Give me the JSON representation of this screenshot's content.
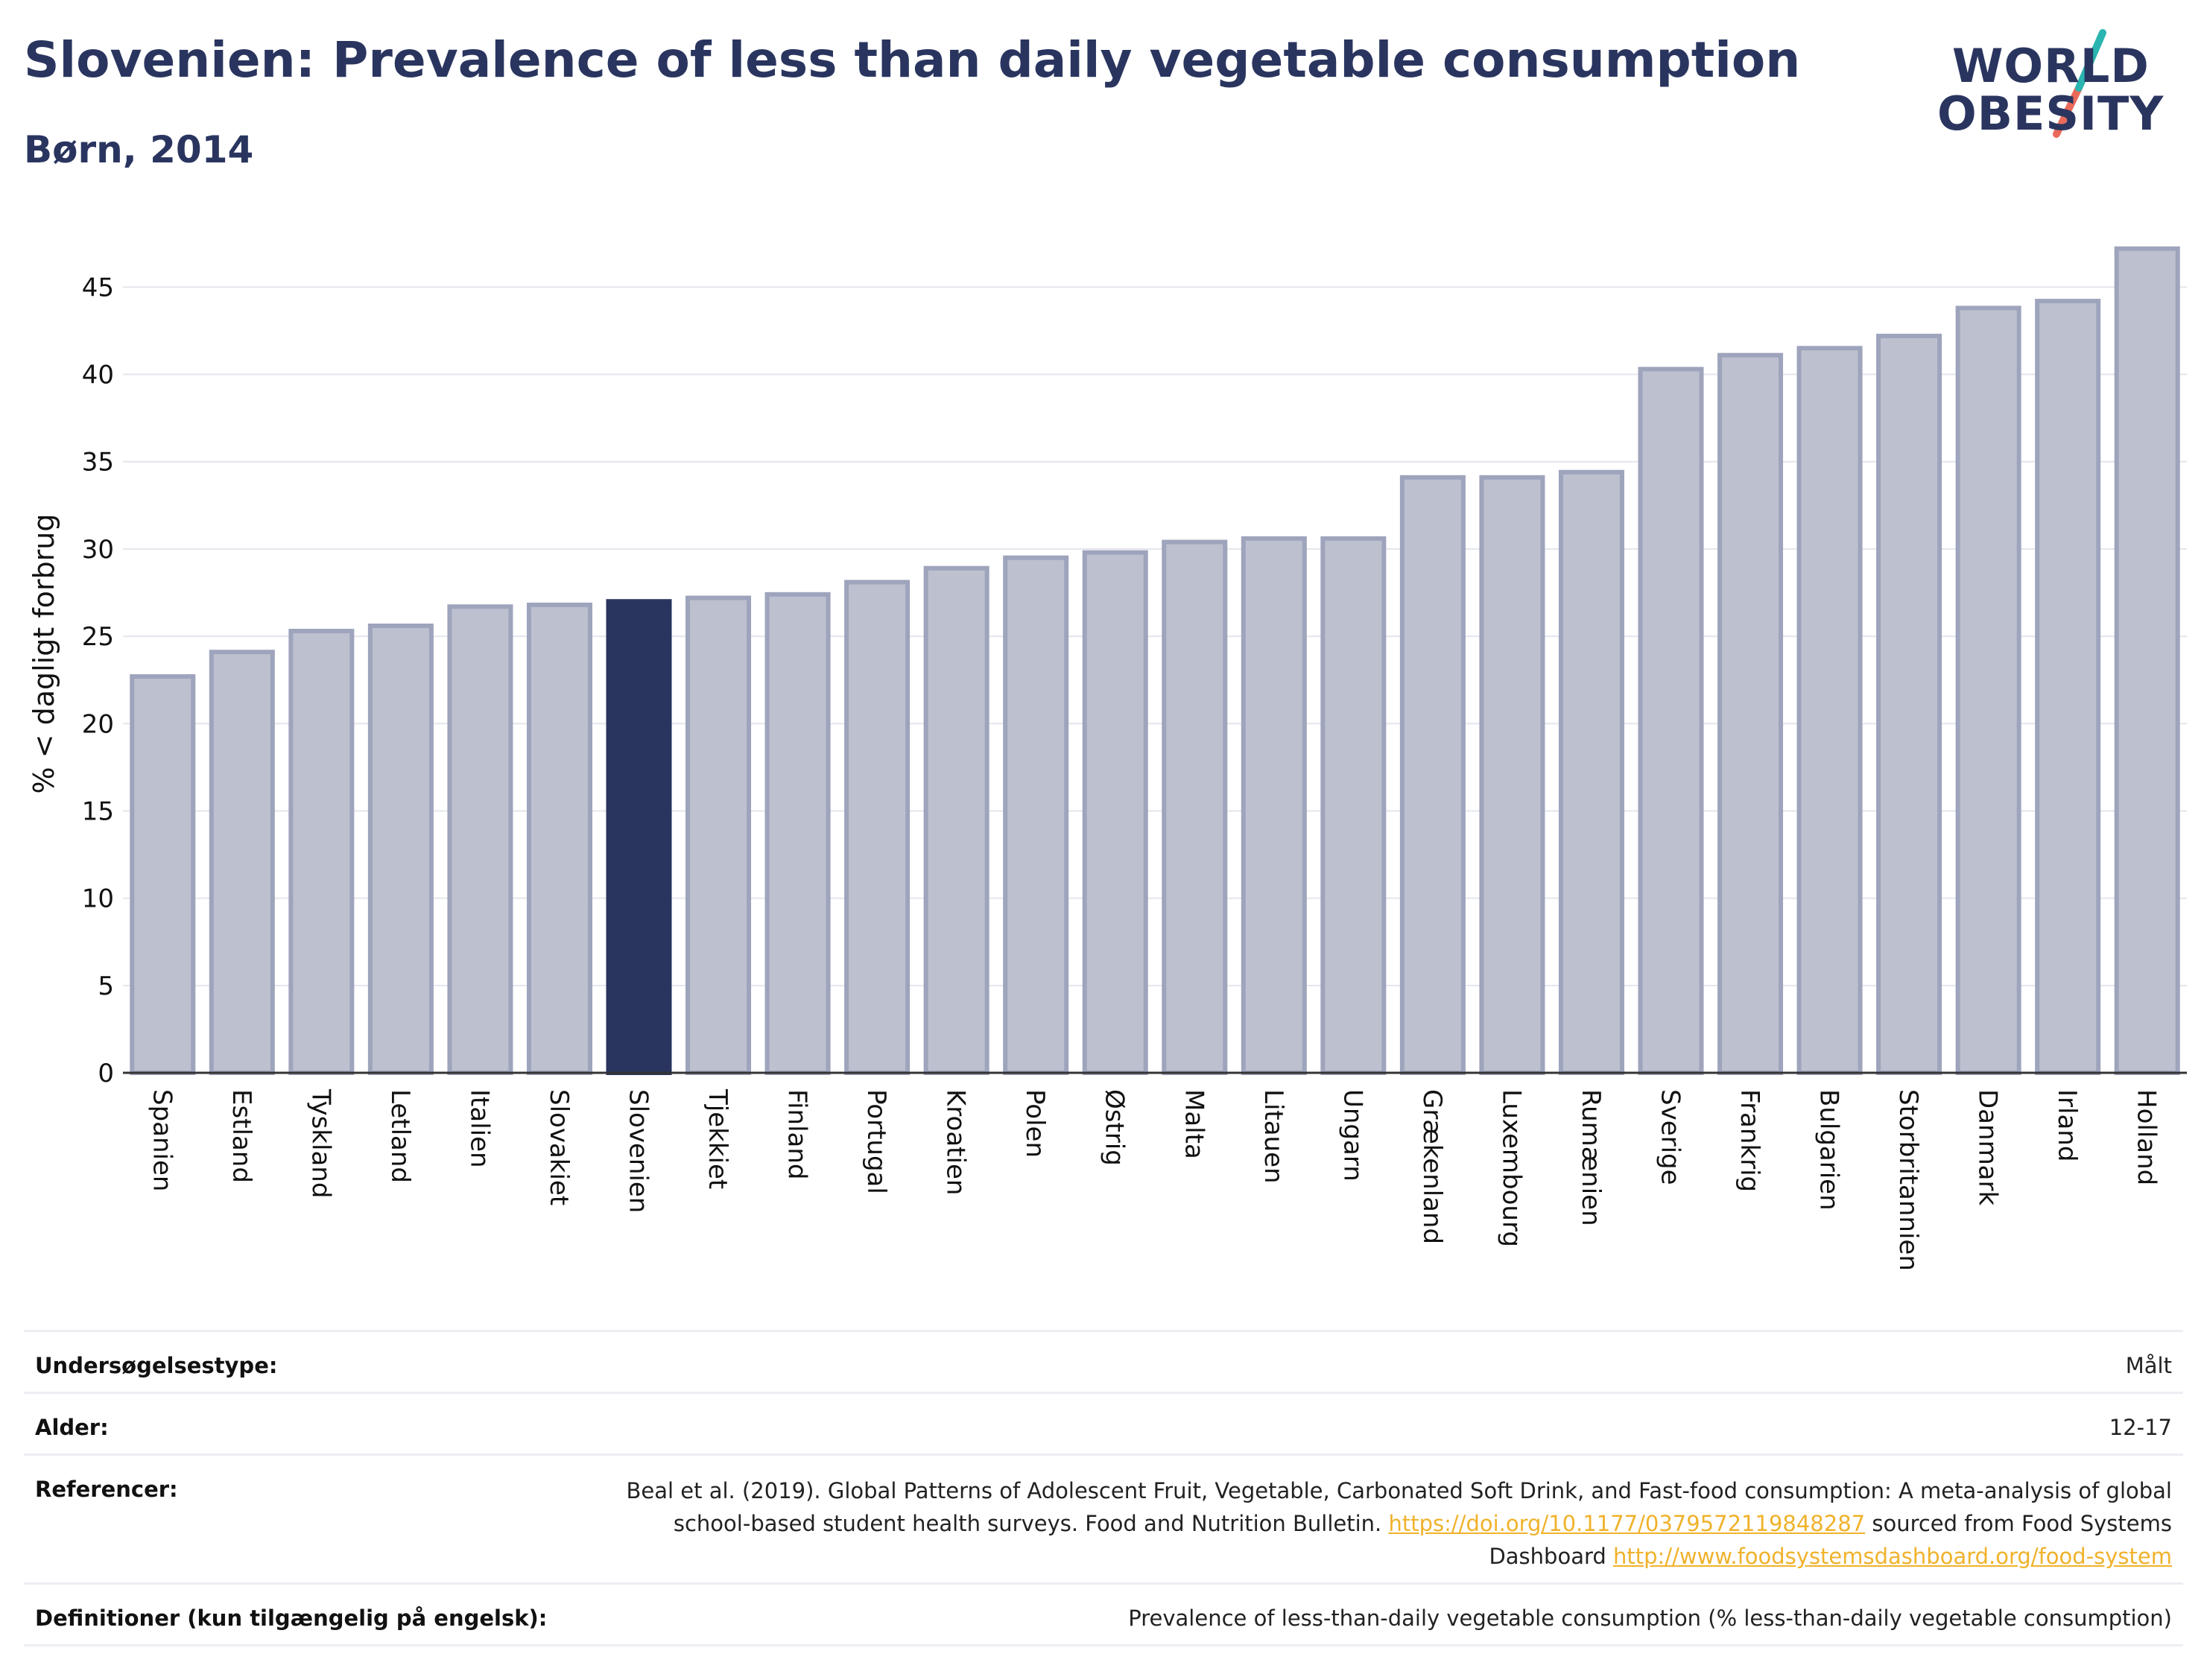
{
  "header": {
    "title": "Slovenien: Prevalence of less than daily vegetable consumption",
    "subtitle": "Børn, 2014"
  },
  "logo": {
    "line1": "WORLD",
    "line2": "OBESITY"
  },
  "colors": {
    "highlight_bar": "#2a355f",
    "bar_fill": "#bcc0cf",
    "bar_stroke": "#9ea4bc",
    "title": "#2a355f",
    "link": "#f0b22b",
    "logo_slash_teal": "#2bb5b0",
    "logo_slash_red": "#e96a5a"
  },
  "chart_data": {
    "type": "bar",
    "ylabel": "% < dagligt forbrug",
    "ylim": [
      0,
      48
    ],
    "yticks": [
      0,
      5,
      10,
      15,
      20,
      25,
      30,
      35,
      40,
      45
    ],
    "grid": true,
    "highlight": "Slovenien",
    "categories": [
      "Spanien",
      "Estland",
      "Tyskland",
      "Letland",
      "Italien",
      "Slovakiet",
      "Slovenien",
      "Tjekkiet",
      "Finland",
      "Portugal",
      "Kroatien",
      "Polen",
      "Østrig",
      "Malta",
      "Litauen",
      "Ungarn",
      "Grækenland",
      "Luxembourg",
      "Rumænien",
      "Sverige",
      "Frankrig",
      "Bulgarien",
      "Storbritannien",
      "Danmark",
      "Irland",
      "Holland"
    ],
    "values": [
      22.7,
      24.1,
      25.3,
      25.6,
      26.7,
      26.8,
      27.0,
      27.2,
      27.4,
      28.1,
      28.9,
      29.5,
      29.8,
      30.4,
      30.6,
      30.6,
      34.1,
      34.1,
      34.4,
      40.3,
      41.1,
      41.5,
      42.2,
      43.8,
      44.2,
      47.2
    ]
  },
  "info": {
    "survey_type": {
      "label": "Undersøgelsestype:",
      "value": "Målt"
    },
    "age": {
      "label": "Alder:",
      "value": "12-17"
    },
    "references": {
      "label": "Referencer:",
      "text1": "Beal et al. (2019). Global Patterns of Adolescent Fruit, Vegetable, Carbonated Soft Drink, and Fast-food consumption: A meta-analysis of global school-based student health surveys. Food and Nutrition Bulletin. ",
      "link1": "https://doi.org/10.1177/0379572119848287",
      "text2": " sourced from Food Systems Dashboard ",
      "link2": "http://www.foodsystemsdashboard.org/food-system"
    },
    "definitions": {
      "label": "Definitioner (kun tilgængelig på engelsk):",
      "value": "Prevalence of less-than-daily vegetable consumption (% less-than-daily vegetable consumption)"
    }
  }
}
